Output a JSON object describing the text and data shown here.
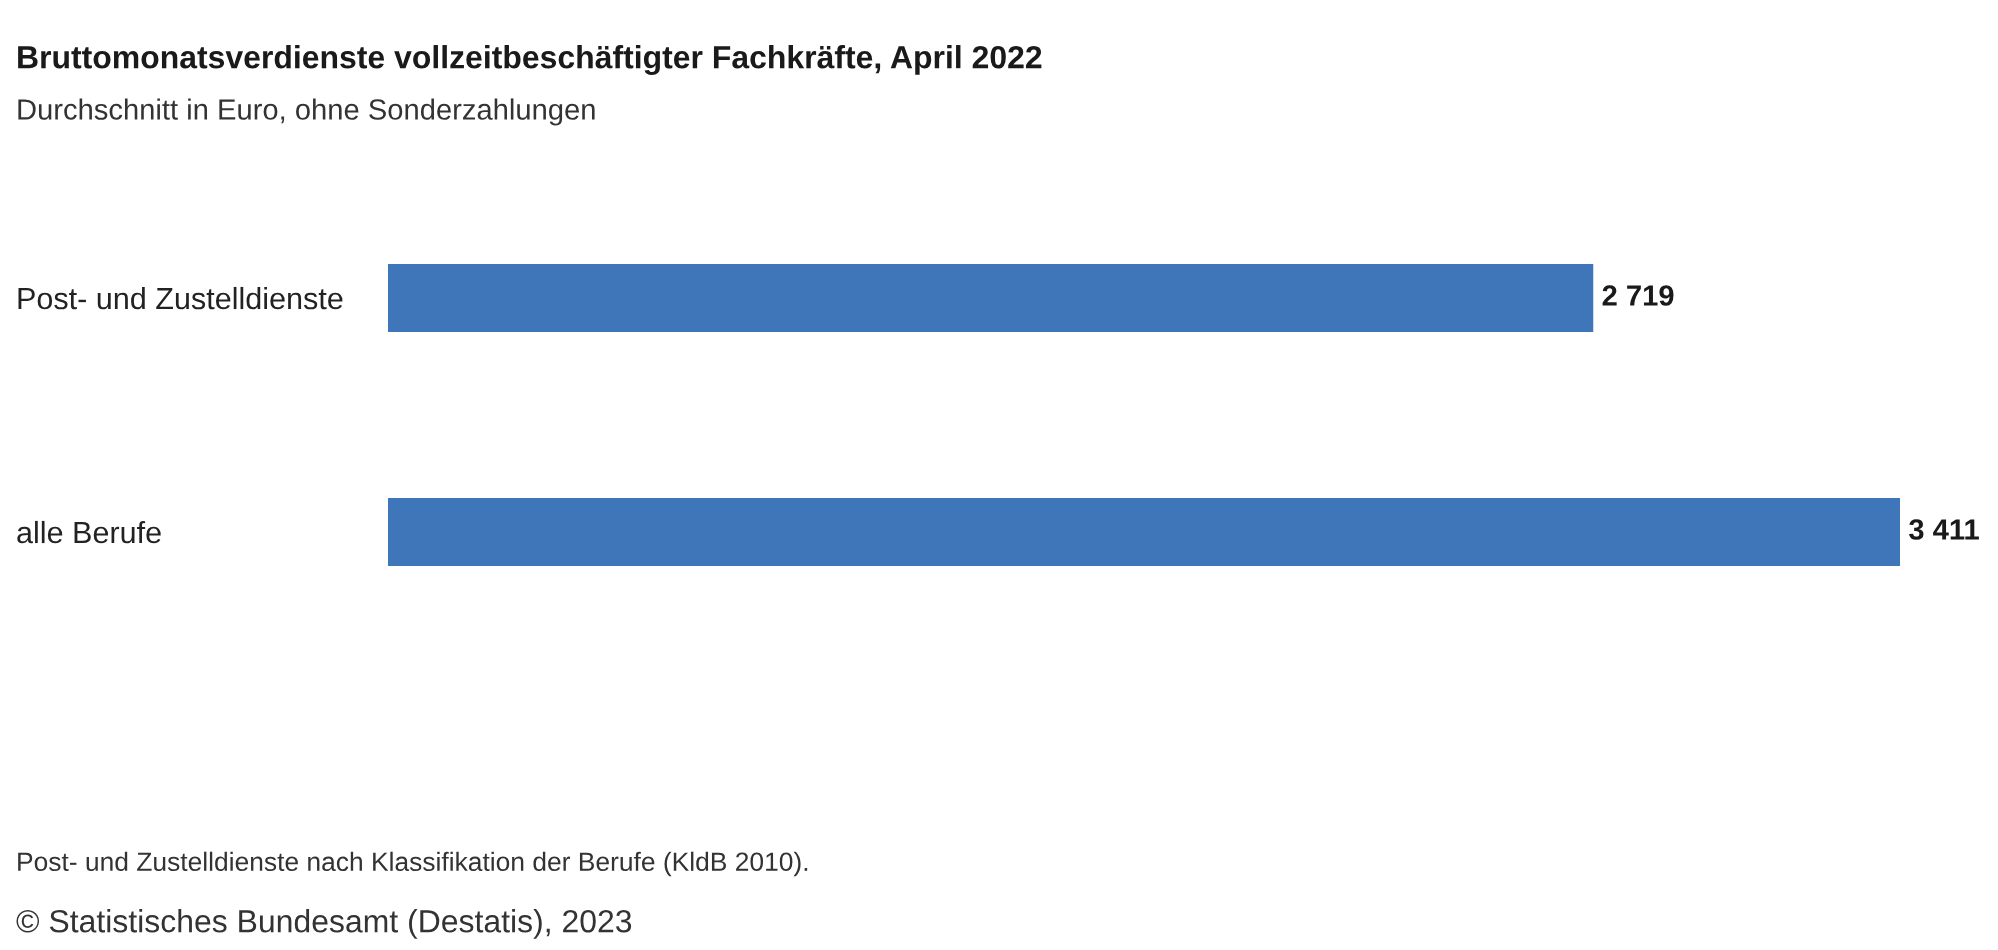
{
  "chart_data": {
    "type": "bar",
    "orientation": "horizontal",
    "title": "Bruttomonatsverdienste vollzeitbeschäftigter Fachkräfte, April 2022",
    "subtitle": "Durchschnitt in Euro, ohne Sonderzahlungen",
    "categories": [
      "Post- und Zustelldienste",
      "alle Berufe"
    ],
    "values": [
      2719,
      3411
    ],
    "value_labels": [
      "2 719",
      "3 411"
    ],
    "color": "#3f76b9",
    "xlim": [
      0,
      3411
    ],
    "tick_labels": "y",
    "annotations": [
      "Post- und Zustelldienste nach Klassifikation der Berufe (KldB 2010).",
      "© Statistisches Bundesamt (Destatis), 2023"
    ]
  }
}
